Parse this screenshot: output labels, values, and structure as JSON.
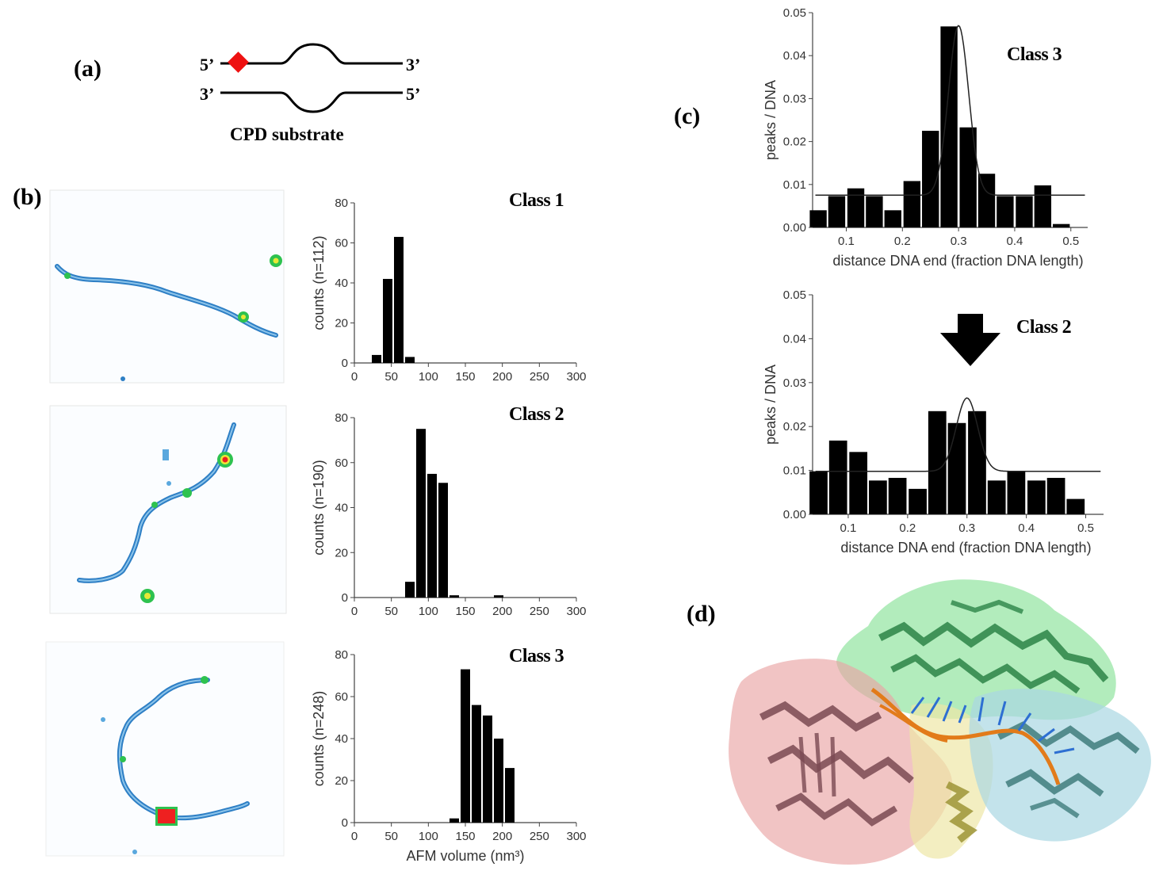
{
  "panels": {
    "a": {
      "label": "(a)",
      "strand_top_5": "5’",
      "strand_top_3": "3’",
      "strand_bot_3": "3’",
      "strand_bot_5": "5’",
      "caption": "CPD substrate",
      "lesion_color": "#ee1111"
    },
    "b": {
      "label": "(b)"
    },
    "c": {
      "label": "(c)"
    },
    "d": {
      "label": "(d)"
    }
  },
  "chart_data": [
    {
      "type": "bar",
      "class_title": "Class 1",
      "ylabel": "counts (n=112)",
      "xlabel": "",
      "xlim": [
        0,
        300
      ],
      "ylim": [
        0,
        80
      ],
      "xticks": [
        0,
        50,
        100,
        150,
        200,
        250,
        300
      ],
      "yticks": [
        0,
        20,
        40,
        60,
        80
      ],
      "bin_width": 15,
      "bins": [
        30,
        45,
        60,
        75,
        90
      ],
      "values": [
        4,
        42,
        63,
        3,
        0
      ]
    },
    {
      "type": "bar",
      "class_title": "Class 2",
      "ylabel": "counts (n=190)",
      "xlabel": "",
      "xlim": [
        0,
        300
      ],
      "ylim": [
        0,
        80
      ],
      "xticks": [
        0,
        50,
        100,
        150,
        200,
        250,
        300
      ],
      "yticks": [
        0,
        20,
        40,
        60,
        80
      ],
      "bin_width": 15,
      "bins": [
        75,
        90,
        105,
        120,
        135,
        150,
        165,
        180,
        195
      ],
      "values": [
        7,
        75,
        55,
        51,
        1,
        0,
        0,
        0,
        1
      ]
    },
    {
      "type": "bar",
      "class_title": "Class 3",
      "ylabel": "counts (n=248)",
      "xlabel": "AFM volume (nm³)",
      "xlim": [
        0,
        300
      ],
      "ylim": [
        0,
        80
      ],
      "xticks": [
        0,
        50,
        100,
        150,
        200,
        250,
        300
      ],
      "yticks": [
        0,
        20,
        40,
        60,
        80
      ],
      "bin_width": 15,
      "bins": [
        135,
        150,
        165,
        180,
        195,
        210,
        225
      ],
      "values": [
        2,
        73,
        56,
        51,
        40,
        26,
        0
      ]
    },
    {
      "type": "bar",
      "class_title": "Class 3",
      "ylabel": "peaks / DNA",
      "xlabel": "distance DNA end (fraction DNA length)",
      "xlim": [
        0.04,
        0.53
      ],
      "ylim": [
        0,
        0.05
      ],
      "xticks": [
        0.1,
        0.2,
        0.3,
        0.4,
        0.5
      ],
      "yticks": [
        0,
        0.01,
        0.02,
        0.03,
        0.04,
        0.05
      ],
      "bin_width": 0.033,
      "bins": [
        0.05,
        0.083,
        0.117,
        0.15,
        0.183,
        0.217,
        0.25,
        0.283,
        0.317,
        0.35,
        0.383,
        0.417,
        0.45,
        0.483,
        0.517
      ],
      "values": [
        0.004,
        0.0073,
        0.0091,
        0.0073,
        0.004,
        0.0108,
        0.0225,
        0.0468,
        0.0233,
        0.0125,
        0.0073,
        0.0073,
        0.0098,
        0.0008,
        0
      ],
      "fit": {
        "baseline": 0.0075,
        "peak_center": 0.3,
        "peak_height": 0.047,
        "peak_sigma": 0.018
      }
    },
    {
      "type": "bar",
      "class_title": "Class 2",
      "ylabel": "peaks / DNA",
      "xlabel": "distance DNA end (fraction DNA length)",
      "xlim": [
        0.04,
        0.53
      ],
      "ylim": [
        0,
        0.05
      ],
      "xticks": [
        0.1,
        0.2,
        0.3,
        0.4,
        0.5
      ],
      "yticks": [
        0,
        0.01,
        0.02,
        0.03,
        0.04,
        0.05
      ],
      "bin_width": 0.033,
      "bins": [
        0.05,
        0.083,
        0.117,
        0.15,
        0.183,
        0.217,
        0.25,
        0.283,
        0.317,
        0.35,
        0.383,
        0.417,
        0.45,
        0.483,
        0.517
      ],
      "values": [
        0.0098,
        0.0168,
        0.0142,
        0.0077,
        0.0083,
        0.0058,
        0.0235,
        0.0208,
        0.0235,
        0.0077,
        0.0098,
        0.0077,
        0.0083,
        0.0035,
        0
      ],
      "fit": {
        "baseline": 0.0098,
        "peak_center": 0.3,
        "peak_height": 0.0265,
        "peak_sigma": 0.018
      }
    }
  ],
  "structure_colors": {
    "green": "#7fdf8f",
    "red": "#e9a5a5",
    "blue": "#a9d7e3",
    "yellow": "#eee7a6",
    "dna": "#e27b1a"
  }
}
